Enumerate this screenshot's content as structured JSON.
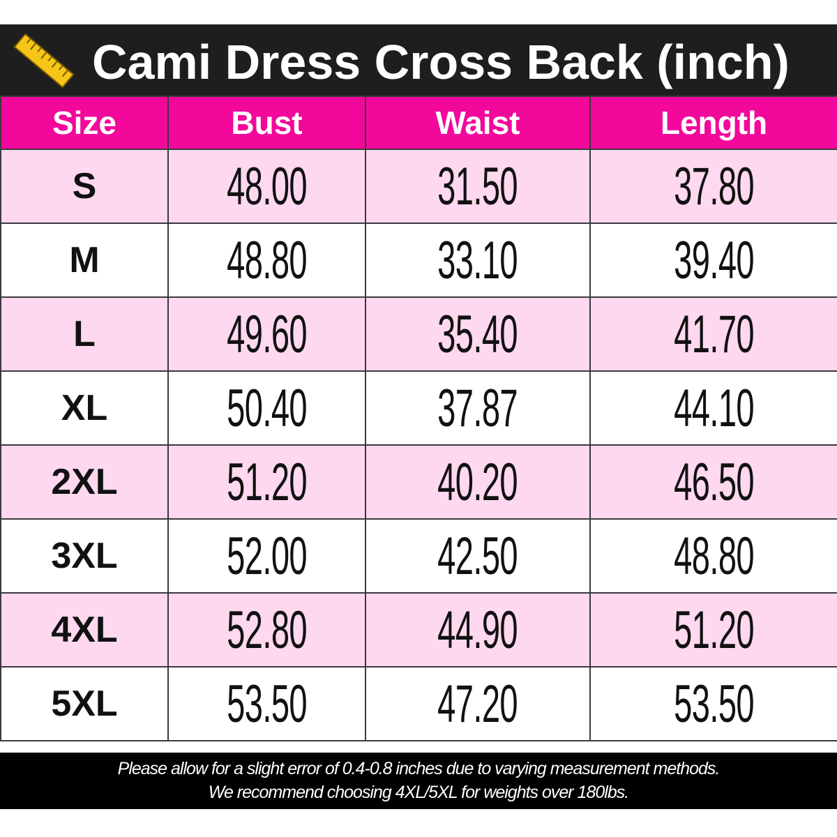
{
  "header": {
    "title": "Cami Dress Cross Back (inch)"
  },
  "table": {
    "columns": [
      "Size",
      "Bust",
      "Waist",
      "Length"
    ],
    "rows": [
      [
        "S",
        "48.00",
        "31.50",
        "37.80"
      ],
      [
        "M",
        "48.80",
        "33.10",
        "39.40"
      ],
      [
        "L",
        "49.60",
        "35.40",
        "41.70"
      ],
      [
        "XL",
        "50.40",
        "37.87",
        "44.10"
      ],
      [
        "2XL",
        "51.20",
        "40.20",
        "46.50"
      ],
      [
        "3XL",
        "52.00",
        "42.50",
        "48.80"
      ],
      [
        "4XL",
        "52.80",
        "44.90",
        "51.20"
      ],
      [
        "5XL",
        "53.50",
        "47.20",
        "53.50"
      ]
    ]
  },
  "footer": {
    "lines": [
      "Please allow for a slight error of 0.4-0.8 inches due to varying measurement methods.",
      "We recommend choosing 4XL/5XL for weights over 180lbs."
    ]
  }
}
